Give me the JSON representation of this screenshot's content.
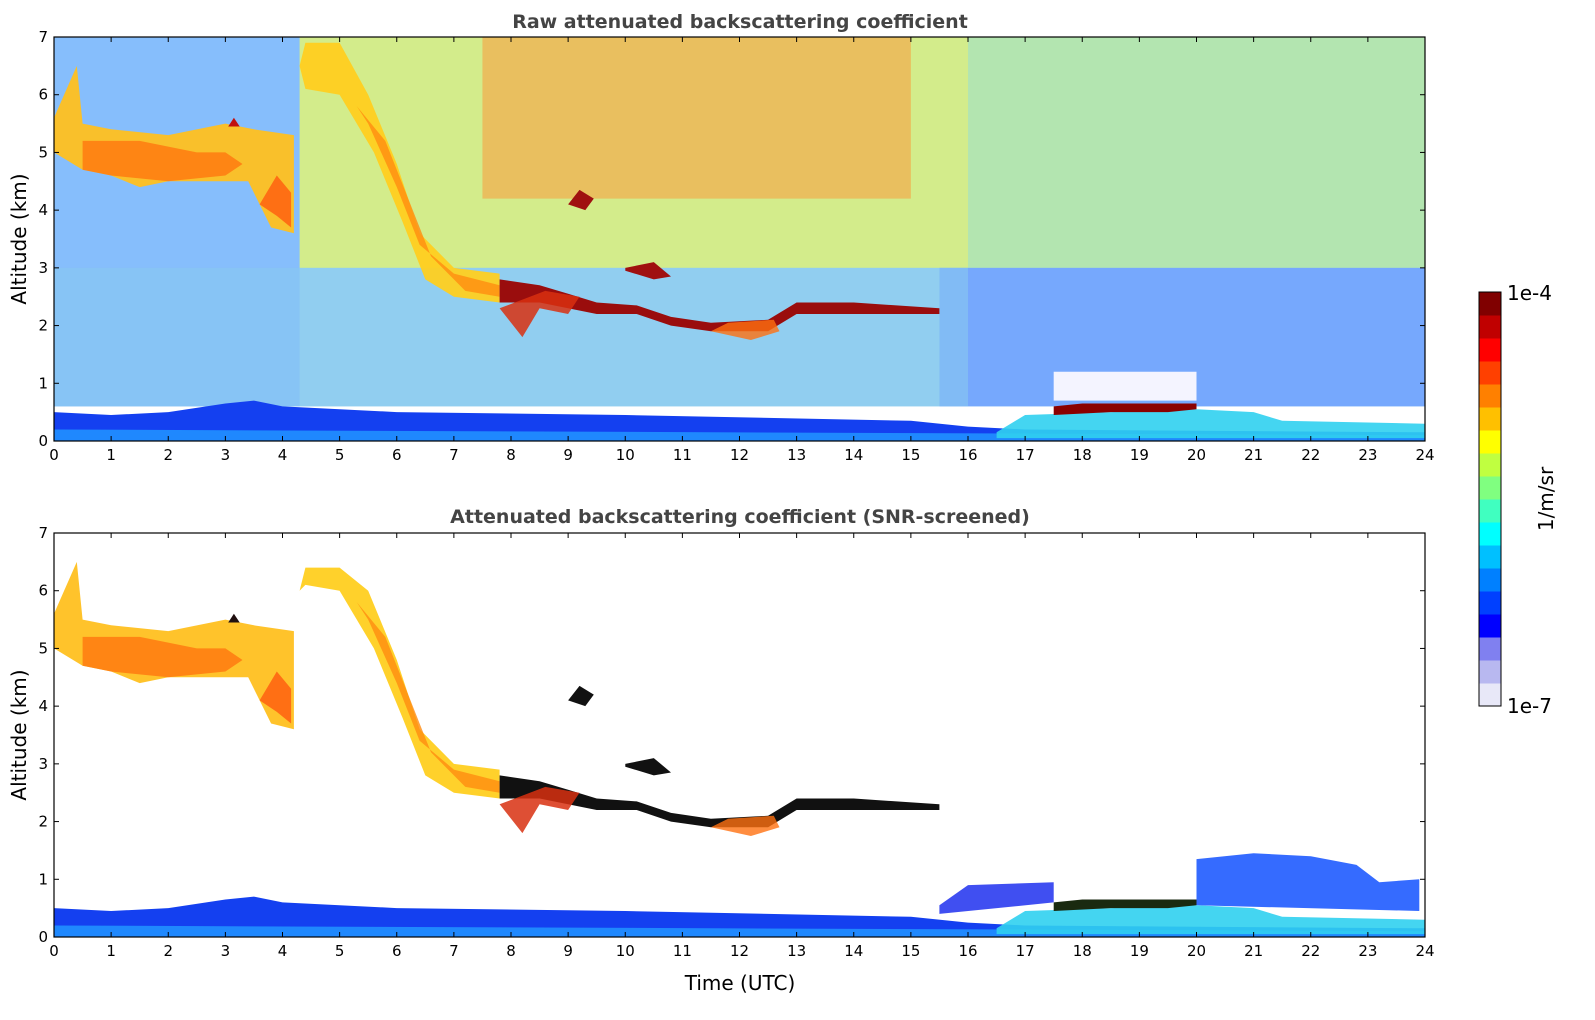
{
  "chart_data": [
    {
      "type": "heatmap",
      "title": "Raw attenuated backscattering coefficient",
      "xlabel": "",
      "ylabel": "Altitude (km)",
      "xlim": [
        0,
        24
      ],
      "ylim": [
        0,
        7
      ],
      "xticks": [
        "0",
        "1",
        "2",
        "3",
        "4",
        "5",
        "6",
        "7",
        "8",
        "9",
        "10",
        "11",
        "12",
        "13",
        "14",
        "15",
        "16",
        "17",
        "18",
        "19",
        "20",
        "21",
        "22",
        "23",
        "24"
      ],
      "yticks": [
        "0",
        "1",
        "2",
        "3",
        "4",
        "5",
        "6",
        "7"
      ],
      "grid": false,
      "colormap": "jet (log scale)",
      "features": [
        {
          "name": "cirrus layer",
          "time": [
            0,
            4.2
          ],
          "altitude_km": [
            3.6,
            5.6
          ]
        },
        {
          "name": "descending cloud",
          "time": [
            4.3,
            7.8
          ],
          "altitude_km": [
            2.4,
            6.9
          ]
        },
        {
          "name": "mid-level cloud",
          "time": [
            7.8,
            15.5
          ],
          "altitude_km": [
            1.8,
            3.0
          ]
        },
        {
          "name": "boundary layer",
          "time": [
            0,
            24
          ],
          "altitude_km": [
            0,
            0.6
          ]
        },
        {
          "name": "low cloud",
          "time": [
            17.5,
            20
          ],
          "altitude_km": [
            0.45,
            0.65
          ]
        }
      ]
    },
    {
      "type": "heatmap",
      "title": "Attenuated backscattering coefficient (SNR-screened)",
      "xlabel": "Time (UTC)",
      "ylabel": "Altitude (km)",
      "xlim": [
        0,
        24
      ],
      "ylim": [
        0,
        7
      ],
      "xticks": [
        "0",
        "1",
        "2",
        "3",
        "4",
        "5",
        "6",
        "7",
        "8",
        "9",
        "10",
        "11",
        "12",
        "13",
        "14",
        "15",
        "16",
        "17",
        "18",
        "19",
        "20",
        "21",
        "22",
        "23",
        "24"
      ],
      "yticks": [
        "0",
        "1",
        "2",
        "3",
        "4",
        "5",
        "6",
        "7"
      ],
      "grid": false,
      "colormap": "jet (log scale)",
      "features": [
        {
          "name": "cirrus layer",
          "time": [
            0,
            4.2
          ],
          "altitude_km": [
            3.6,
            5.6
          ]
        },
        {
          "name": "descending cloud",
          "time": [
            4.3,
            7.8
          ],
          "altitude_km": [
            2.4,
            6.4
          ]
        },
        {
          "name": "mid-level cloud",
          "time": [
            7.8,
            15.5
          ],
          "altitude_km": [
            1.8,
            3.0
          ]
        },
        {
          "name": "boundary layer",
          "time": [
            0,
            24
          ],
          "altitude_km": [
            0,
            1.4
          ]
        },
        {
          "name": "low cloud",
          "time": [
            17.5,
            20
          ],
          "altitude_km": [
            0.45,
            0.65
          ]
        }
      ]
    }
  ],
  "colorbar": {
    "max_label": "1e-4",
    "min_label": "1e-7",
    "unit_label": "1/m/sr",
    "colors": [
      "#e8e8f8",
      "#b8b8f0",
      "#8080f0",
      "#0000ff",
      "#0040ff",
      "#0080ff",
      "#00c0ff",
      "#00ffff",
      "#40ffc0",
      "#80ff80",
      "#c0ff40",
      "#ffff00",
      "#ffc000",
      "#ff8000",
      "#ff4000",
      "#ff0000",
      "#c00000",
      "#800000"
    ]
  }
}
